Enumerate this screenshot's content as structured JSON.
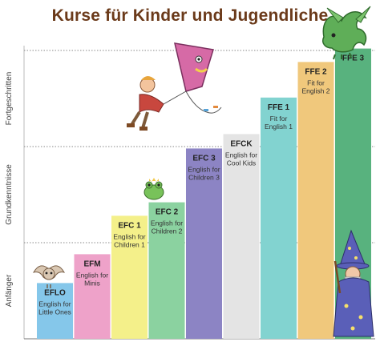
{
  "title": "Kurse für Kinder und Jugendliche",
  "stages": [
    {
      "label": "Anfänger",
      "from": 0,
      "to": 1
    },
    {
      "label": "Grundkenntnisse",
      "from": 1,
      "to": 2
    },
    {
      "label": "Fortgeschritten",
      "from": 2,
      "to": 3
    }
  ],
  "chart_data": {
    "type": "bar",
    "title": "Kurse für Kinder und Jugendliche",
    "ylim": [
      0,
      3
    ],
    "y_gridlines": [
      1,
      2,
      3
    ],
    "categories": [
      "EFLO",
      "EFM",
      "EFC 1",
      "EFC 2",
      "EFC 3",
      "EFCK",
      "FFE 1",
      "FFE 2",
      "FFE 3"
    ],
    "values": [
      0.58,
      0.88,
      1.28,
      1.42,
      1.98,
      2.13,
      2.51,
      2.88,
      3.02
    ],
    "bars": [
      {
        "code": "EFLO",
        "name": "English for Little Ones",
        "value": 0.58,
        "color": "#85c7ea"
      },
      {
        "code": "EFM",
        "name": "English for Minis",
        "value": 0.88,
        "color": "#eea2c9"
      },
      {
        "code": "EFC 1",
        "name": "English for Children 1",
        "value": 1.28,
        "color": "#f4f08a"
      },
      {
        "code": "EFC 2",
        "name": "English for Children 2",
        "value": 1.42,
        "color": "#8bd2a0"
      },
      {
        "code": "EFC 3",
        "name": "English for Children 3",
        "value": 1.98,
        "color": "#8c84c4"
      },
      {
        "code": "EFCK",
        "name": "English for Cool Kids",
        "value": 2.13,
        "color": "#e4e4e4"
      },
      {
        "code": "FFE 1",
        "name": "Fit for English 1",
        "value": 2.51,
        "color": "#82d3d0"
      },
      {
        "code": "FFE 2",
        "name": "Fit for English 2",
        "value": 2.88,
        "color": "#f0c87c"
      },
      {
        "code": "FFE 3",
        "name": "",
        "value": 3.02,
        "color": "#58b27e"
      }
    ]
  }
}
